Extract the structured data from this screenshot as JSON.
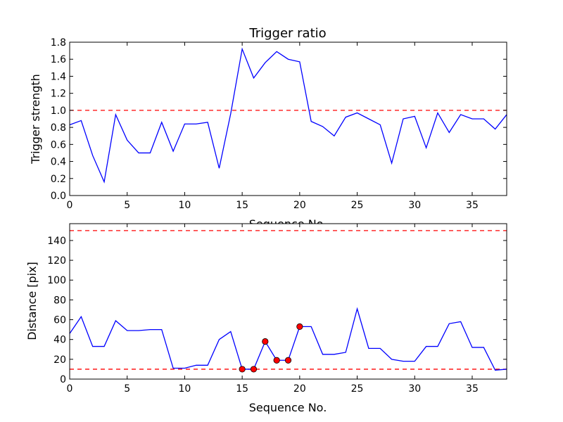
{
  "chart_data": [
    {
      "type": "line",
      "title": "Trigger ratio",
      "xlabel": "Sequence No.",
      "ylabel": "Trigger strength",
      "xlim": [
        0,
        38
      ],
      "ylim": [
        0,
        1.8
      ],
      "xticks": [
        0,
        5,
        10,
        15,
        20,
        25,
        30,
        35
      ],
      "yticks": [
        0.0,
        0.2,
        0.4,
        0.6,
        0.8,
        1.0,
        1.2,
        1.4,
        1.6,
        1.8
      ],
      "ytick_labels": [
        "0.0",
        "0.2",
        "0.4",
        "0.6",
        "0.8",
        "1.0",
        "1.2",
        "1.4",
        "1.6",
        "1.8"
      ],
      "grid": false,
      "line_color": "#0000ff",
      "threshold_color": "#ff0000",
      "thresholds": [
        1.0
      ],
      "x": [
        0,
        1,
        2,
        3,
        4,
        5,
        6,
        7,
        8,
        9,
        10,
        11,
        12,
        13,
        14,
        15,
        16,
        17,
        18,
        19,
        20,
        21,
        22,
        23,
        24,
        25,
        26,
        27,
        28,
        29,
        30,
        31,
        32,
        33,
        34,
        35,
        36,
        37,
        38
      ],
      "y": [
        0.83,
        0.88,
        0.47,
        0.16,
        0.95,
        0.65,
        0.5,
        0.5,
        0.86,
        0.52,
        0.84,
        0.84,
        0.86,
        0.32,
        0.96,
        1.72,
        1.38,
        1.56,
        1.69,
        1.6,
        1.57,
        0.87,
        0.81,
        0.7,
        0.92,
        0.97,
        0.9,
        0.83,
        0.38,
        0.9,
        0.93,
        0.56,
        0.97,
        0.74,
        0.95,
        0.9,
        0.9,
        0.78,
        0.95
      ]
    },
    {
      "type": "line",
      "title": "",
      "xlabel": "Sequence No.",
      "ylabel": "Distance [pix]",
      "xlim": [
        0,
        38
      ],
      "ylim": [
        0,
        157
      ],
      "xticks": [
        0,
        5,
        10,
        15,
        20,
        25,
        30,
        35
      ],
      "yticks": [
        0,
        20,
        40,
        60,
        80,
        100,
        120,
        140
      ],
      "ytick_labels": [
        "0",
        "20",
        "40",
        "60",
        "80",
        "100",
        "120",
        "140"
      ],
      "grid": false,
      "line_color": "#0000ff",
      "threshold_color": "#ff0000",
      "marker_color": "#ff0000",
      "thresholds": [
        10,
        150
      ],
      "x": [
        0,
        1,
        2,
        3,
        4,
        5,
        6,
        7,
        8,
        9,
        10,
        11,
        12,
        13,
        14,
        15,
        16,
        17,
        18,
        19,
        20,
        21,
        22,
        23,
        24,
        25,
        26,
        27,
        28,
        29,
        30,
        31,
        32,
        33,
        34,
        35,
        36,
        37,
        38
      ],
      "y": [
        46,
        63,
        33,
        33,
        59,
        49,
        49,
        50,
        50,
        11,
        11,
        14,
        14,
        40,
        48,
        10,
        10,
        38,
        19,
        19,
        53,
        53,
        25,
        25,
        27,
        71,
        31,
        31,
        20,
        18,
        18,
        33,
        33,
        56,
        58,
        32,
        32,
        9,
        10
      ],
      "markers": {
        "x": [
          15,
          16,
          17,
          18,
          19,
          20
        ],
        "y": [
          10,
          10,
          38,
          19,
          19,
          53
        ]
      }
    }
  ]
}
